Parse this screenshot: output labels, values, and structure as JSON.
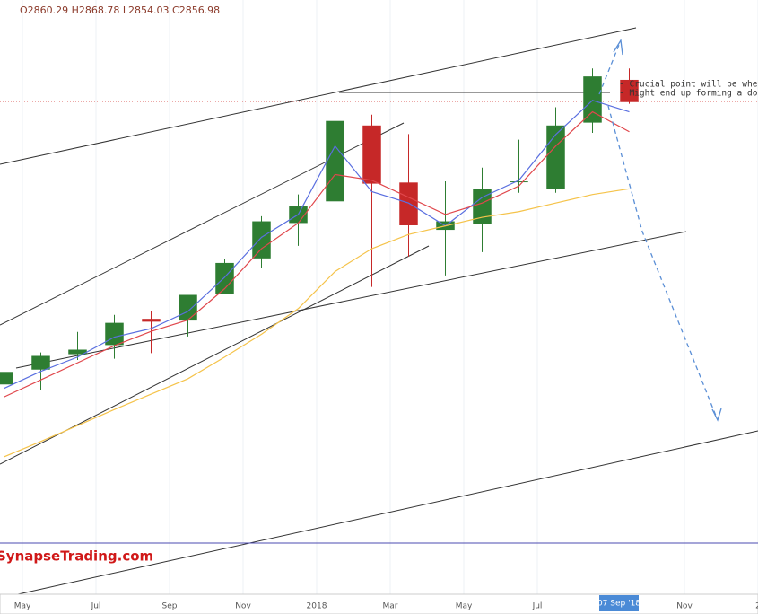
{
  "chart_data": {
    "type": "candlestick",
    "ohlc_text": "O2860.29 H2868.78 L2854.03 C2856.98",
    "notes": [
      "- Crucial point will be whether it can",
      "- Might end up forming a double top"
    ],
    "watermark": "SynapseTrading.com",
    "cursor_label": "07 Sep '18",
    "x": [
      "2017-04",
      "2017-05",
      "2017-06",
      "2017-07",
      "2017-08",
      "2017-09",
      "2017-10",
      "2017-11",
      "2017-12",
      "2018-01",
      "2018-02",
      "2018-03",
      "2018-04",
      "2018-05",
      "2018-06",
      "2018-07",
      "2018-08",
      "2018-09"
    ],
    "open": [
      2362,
      2388,
      2415,
      2431,
      2477,
      2474,
      2521,
      2583,
      2645,
      2683,
      2816,
      2716,
      2633,
      2643,
      2718,
      2704,
      2821,
      2896
    ],
    "high": [
      2398,
      2418,
      2454,
      2484,
      2491,
      2519,
      2582,
      2657,
      2695,
      2873,
      2835,
      2801,
      2718,
      2742,
      2791,
      2848,
      2916,
      2916
    ],
    "low": [
      2328,
      2353,
      2405,
      2407,
      2417,
      2446,
      2520,
      2566,
      2605,
      2683,
      2533,
      2586,
      2553,
      2594,
      2698,
      2698,
      2803,
      2854
    ],
    "close": [
      2384,
      2412,
      2423,
      2470,
      2472,
      2519,
      2575,
      2648,
      2674,
      2824,
      2714,
      2641,
      2648,
      2705,
      2718,
      2816,
      2902,
      2857
    ],
    "up_color": "#2e7d32",
    "down_color": "#c62828",
    "series": [
      {
        "color": "#5a6fe0",
        "values": [
          2355,
          2385,
          2410,
          2445,
          2460,
          2490,
          2550,
          2620,
          2660,
          2780,
          2700,
          2680,
          2640,
          2690,
          2720,
          2800,
          2860,
          2840
        ]
      },
      {
        "color": "#e0474c",
        "values": [
          2340,
          2370,
          2400,
          2430,
          2455,
          2475,
          2530,
          2600,
          2645,
          2730,
          2720,
          2690,
          2660,
          2680,
          2710,
          2780,
          2840,
          2805
        ]
      },
      {
        "color": "#f5c34a",
        "values": [
          2235,
          2262,
          2290,
          2318,
          2345,
          2372,
          2410,
          2450,
          2495,
          2560,
          2600,
          2625,
          2640,
          2655,
          2665,
          2680,
          2695,
          2705
        ]
      }
    ],
    "xlim": [
      "2017-05",
      "2019-01"
    ],
    "ylim": [
      1991,
      3036
    ],
    "xticks": [
      {
        "value": "2017-05",
        "label": "May"
      },
      {
        "value": "2017-07",
        "label": "Jul"
      },
      {
        "value": "2017-09",
        "label": "Sep"
      },
      {
        "value": "2017-11",
        "label": "Nov"
      },
      {
        "value": "2018-01",
        "label": "2018"
      },
      {
        "value": "2018-03",
        "label": "Mar"
      },
      {
        "value": "2018-05",
        "label": "May"
      },
      {
        "value": "2018-07",
        "label": "Jul"
      },
      {
        "value": "2018-11",
        "label": "Nov"
      },
      {
        "value": "2019-01",
        "label": "2"
      }
    ]
  }
}
